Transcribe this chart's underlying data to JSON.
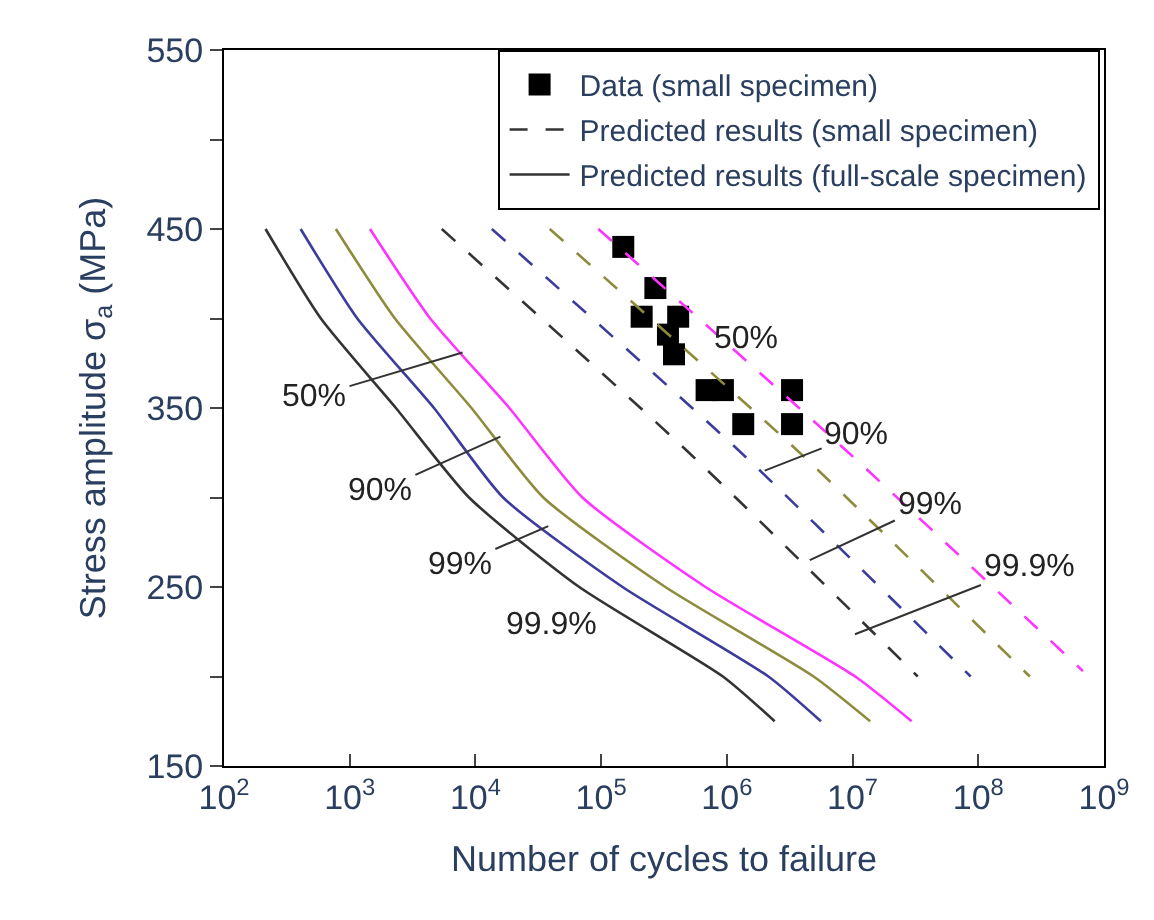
{
  "chart_data": {
    "type": "line",
    "xlabel": "Number of cycles to failure",
    "ylabel": "Stress amplitude σ$_{a}$ (MPa)",
    "log": "x",
    "legend": "top right",
    "xlim": [
      100,
      1000000000
    ],
    "xticks": [
      {
        "value": 100,
        "label": "10$^{2}$"
      },
      {
        "value": 1000,
        "label": "10$^{3}$"
      },
      {
        "value": 10000,
        "label": "10$^{4}$"
      },
      {
        "value": 100000,
        "label": "10$^{5}$"
      },
      {
        "value": 1000000,
        "label": "10$^{6}$"
      },
      {
        "value": 10000000,
        "label": "10$^{7}$"
      },
      {
        "value": 100000000,
        "label": "10$^{8}$"
      },
      {
        "value": 1000000000,
        "label": "10$^{9}$"
      }
    ],
    "ylim": [
      150,
      550
    ],
    "yticks": [
      150,
      {
        "value": 200,
        "label": null
      },
      250,
      {
        "value": 300,
        "label": null
      },
      350,
      {
        "value": 400,
        "label": null
      },
      450,
      {
        "value": 500,
        "label": null
      },
      550
    ],
    "series": [
      {
        "name": "Data (small specimen)",
        "type": "scatter",
        "marker": "square",
        "color": "#000000",
        "x": [
          150000,
          270000,
          210000,
          410000,
          340000,
          380000,
          690000,
          930000,
          1350000,
          3300000,
          3300000
        ],
        "values": [
          440,
          417,
          401,
          401,
          391,
          380,
          360,
          360,
          341,
          360,
          341
        ]
      },
      {
        "name": "Predicted results (small specimen)",
        "line_style": "dashed",
        "color": "#333333",
        "x": [
          5400,
          500000,
          33000000
        ],
        "values": [
          450,
          325,
          200
        ]
      },
      {
        "line_style": "dashed",
        "color": "#3c3c9c",
        "x": [
          13500,
          1300000,
          87000000
        ],
        "values": [
          450,
          325,
          200
        ]
      },
      {
        "line_style": "dashed",
        "color": "#8c8c3c",
        "x": [
          39000,
          3800000,
          257000000
        ],
        "values": [
          450,
          325,
          200
        ]
      },
      {
        "line_style": "dashed",
        "color": "#ff33ff",
        "x": [
          95000,
          9300000,
          680000000
        ],
        "values": [
          450,
          325,
          203
        ]
      },
      {
        "name": "Predicted results (full-scale specimen)",
        "line_style": "solid",
        "color": "#333333",
        "x": [
          214,
          590,
          2330,
          8900,
          67000,
          930000,
          2400000
        ],
        "values": [
          450,
          400,
          350,
          300,
          250,
          200,
          175
        ]
      },
      {
        "line_style": "solid",
        "color": "#3c3c9c",
        "x": [
          407,
          1150,
          4680,
          16600,
          148000,
          2140000,
          5600000
        ],
        "values": [
          450,
          400,
          350,
          300,
          250,
          200,
          175
        ]
      },
      {
        "line_style": "solid",
        "color": "#8c8c3c",
        "x": [
          776,
          2290,
          9300,
          34700,
          324000,
          4900000,
          13800000
        ],
        "values": [
          450,
          400,
          350,
          300,
          250,
          200,
          175
        ]
      },
      {
        "line_style": "solid",
        "color": "#ff33ff",
        "x": [
          1450,
          4370,
          18600,
          71000,
          676000,
          10500000,
          29500000
        ],
        "values": [
          450,
          400,
          350,
          300,
          250,
          200,
          175
        ]
      }
    ],
    "annotations": [
      {
        "text": "50%",
        "x": 7900,
        "y": 381
      },
      {
        "text": "90%",
        "x": 15800,
        "y": 334
      },
      {
        "text": "99%",
        "x": 38000,
        "y": 284
      },
      "99.9%",
      "50%",
      {
        "text": "90%",
        "x": 2000000,
        "y": 315
      },
      {
        "text": "99%",
        "x": 4570000,
        "y": 265
      },
      "99.9%"
    ]
  }
}
